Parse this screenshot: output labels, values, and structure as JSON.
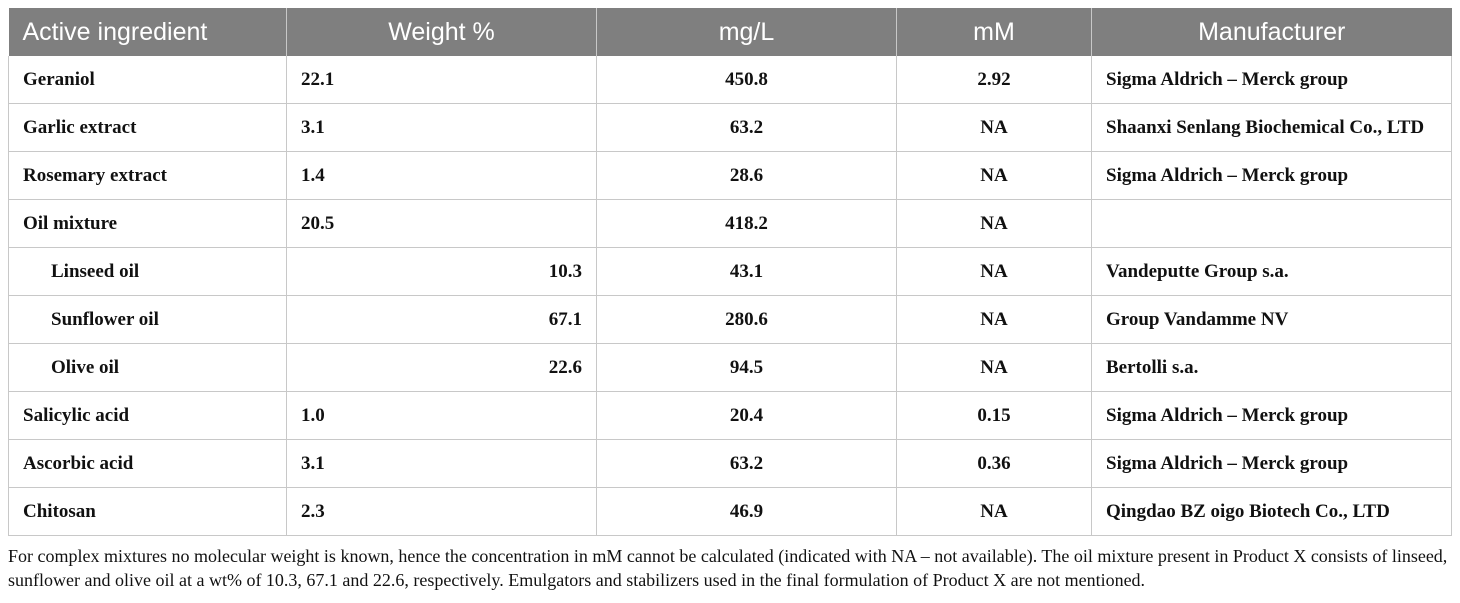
{
  "table": {
    "headers": [
      "Active ingredient",
      "Weight %",
      "mg/L",
      "mM",
      "Manufacturer"
    ],
    "rows": [
      {
        "ingredient": "Geraniol",
        "weight": "22.1",
        "mgl": "450.8",
        "mm": "2.92",
        "manufacturer": "Sigma Aldrich – Merck group",
        "sub": false
      },
      {
        "ingredient": "Garlic extract",
        "weight": "3.1",
        "mgl": "63.2",
        "mm": "NA",
        "manufacturer": "Shaanxi Senlang Biochemical Co., LTD",
        "sub": false
      },
      {
        "ingredient": "Rosemary extract",
        "weight": "1.4",
        "mgl": "28.6",
        "mm": "NA",
        "manufacturer": "Sigma Aldrich – Merck group",
        "sub": false
      },
      {
        "ingredient": "Oil mixture",
        "weight": "20.5",
        "mgl": "418.2",
        "mm": "NA",
        "manufacturer": "",
        "sub": false
      },
      {
        "ingredient": "Linseed oil",
        "weight": "10.3",
        "mgl": "43.1",
        "mm": "NA",
        "manufacturer": "Vandeputte Group s.a.",
        "sub": true
      },
      {
        "ingredient": "Sunflower oil",
        "weight": "67.1",
        "mgl": "280.6",
        "mm": "NA",
        "manufacturer": "Group Vandamme NV",
        "sub": true
      },
      {
        "ingredient": "Olive oil",
        "weight": "22.6",
        "mgl": "94.5",
        "mm": "NA",
        "manufacturer": "Bertolli s.a.",
        "sub": true
      },
      {
        "ingredient": "Salicylic acid",
        "weight": "1.0",
        "mgl": "20.4",
        "mm": "0.15",
        "manufacturer": "Sigma Aldrich – Merck group",
        "sub": false
      },
      {
        "ingredient": "Ascorbic acid",
        "weight": "3.1",
        "mgl": "63.2",
        "mm": "0.36",
        "manufacturer": "Sigma Aldrich – Merck group",
        "sub": false
      },
      {
        "ingredient": "Chitosan",
        "weight": "2.3",
        "mgl": "46.9",
        "mm": "NA",
        "manufacturer": "Qingdao BZ oigo Biotech Co., LTD",
        "sub": false
      }
    ]
  },
  "footnote": "For complex mixtures no molecular weight is known, hence the concentration in mM cannot be calculated (indicated with NA – not available). The oil mixture present in Product X consists of linseed, sunflower and olive oil at a wt% of 10.3, 67.1 and 22.6, respectively. Emulgators and stabilizers used in the final formulation of Product X are not mentioned.",
  "colors": {
    "header_bg": "#7f7f7f",
    "header_text": "#ffffff",
    "grid": "#c8c8c8"
  }
}
